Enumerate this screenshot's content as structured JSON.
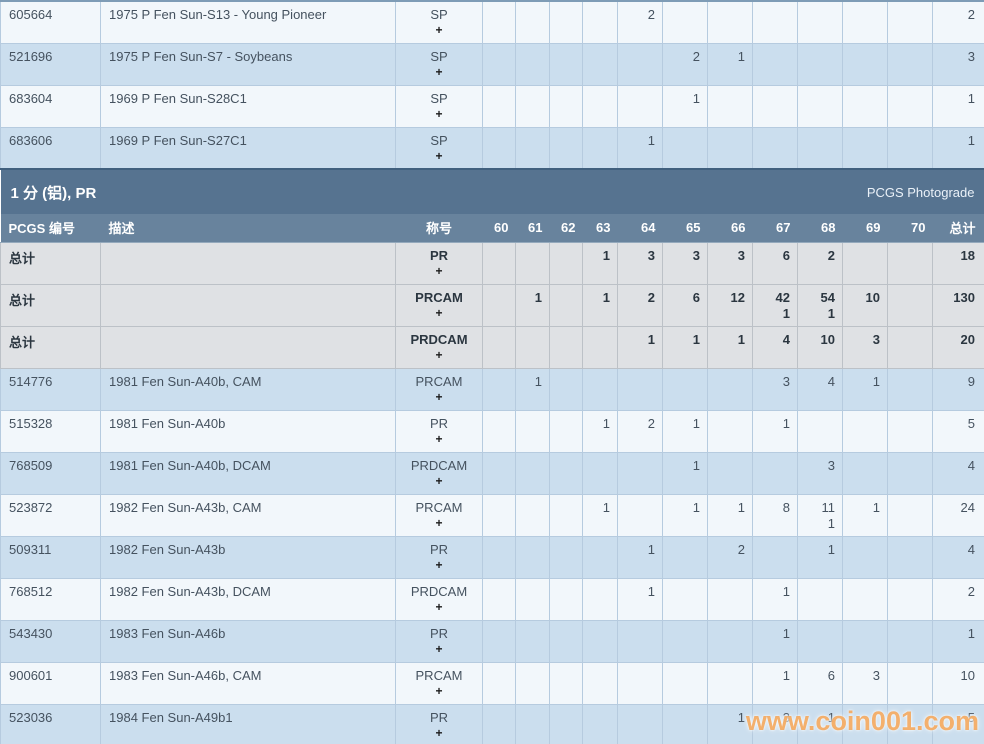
{
  "ui": {
    "plus": "+",
    "total_label": "总计",
    "watermark": "www.coin001.com"
  },
  "section": {
    "title": "1 分 (铝), PR",
    "link": "PCGS Photograde"
  },
  "columns": {
    "num": "PCGS 编号",
    "desc": "描述",
    "designation": "称号",
    "grades": [
      "60",
      "61",
      "62",
      "63",
      "64",
      "65",
      "66",
      "67",
      "68",
      "69",
      "70"
    ],
    "total": "总计"
  },
  "rows": [
    {
      "type": "coin",
      "shade": "light",
      "num": "605664",
      "desc": "1975 P Fen Sun-S13 - Young Pioneer",
      "desig": "SP",
      "values": [
        "",
        "",
        "",
        "",
        "2",
        "",
        "",
        "",
        "",
        "",
        ""
      ],
      "total": "2"
    },
    {
      "type": "coin",
      "shade": "blue",
      "num": "521696",
      "desc": "1975 P Fen Sun-S7 - Soybeans",
      "desig": "SP",
      "values": [
        "",
        "",
        "",
        "",
        "",
        "2",
        "1",
        "",
        "",
        "",
        ""
      ],
      "total": "3"
    },
    {
      "type": "coin",
      "shade": "light",
      "num": "683604",
      "desc": "1969 P Fen Sun-S28C1",
      "desig": "SP",
      "values": [
        "",
        "",
        "",
        "",
        "",
        "1",
        "",
        "",
        "",
        "",
        ""
      ],
      "total": "1"
    },
    {
      "type": "coin",
      "shade": "blue",
      "num": "683606",
      "desc": "1969 P Fen Sun-S27C1",
      "desig": "SP",
      "values": [
        "",
        "",
        "",
        "",
        "1",
        "",
        "",
        "",
        "",
        "",
        ""
      ],
      "total": "1"
    },
    {
      "type": "section"
    },
    {
      "type": "colhead"
    },
    {
      "type": "total",
      "desig": "PR",
      "values": [
        "",
        "",
        "",
        "1",
        "3",
        "3",
        "3",
        "6",
        "2",
        "",
        ""
      ],
      "total": "18"
    },
    {
      "type": "total",
      "desig": "PRCAM",
      "values": [
        "",
        "1",
        "",
        "1",
        "2",
        "6",
        "12",
        "42\n1",
        "54\n1",
        "10",
        ""
      ],
      "total": "130"
    },
    {
      "type": "total",
      "desig": "PRDCAM",
      "values": [
        "",
        "",
        "",
        "",
        "1",
        "1",
        "1",
        "4",
        "10",
        "3",
        ""
      ],
      "total": "20"
    },
    {
      "type": "coin",
      "shade": "blue",
      "num": "514776",
      "desc": "1981 Fen Sun-A40b, CAM",
      "desig": "PRCAM",
      "values": [
        "",
        "1",
        "",
        "",
        "",
        "",
        "",
        "3",
        "4",
        "1",
        ""
      ],
      "total": "9"
    },
    {
      "type": "coin",
      "shade": "light",
      "num": "515328",
      "desc": "1981 Fen Sun-A40b",
      "desig": "PR",
      "values": [
        "",
        "",
        "",
        "1",
        "2",
        "1",
        "",
        "1",
        "",
        "",
        ""
      ],
      "total": "5"
    },
    {
      "type": "coin",
      "shade": "blue",
      "num": "768509",
      "desc": "1981 Fen Sun-A40b, DCAM",
      "desig": "PRDCAM",
      "values": [
        "",
        "",
        "",
        "",
        "",
        "1",
        "",
        "",
        "3",
        "",
        ""
      ],
      "total": "4"
    },
    {
      "type": "coin",
      "shade": "light",
      "num": "523872",
      "desc": "1982 Fen Sun-A43b, CAM",
      "desig": "PRCAM",
      "values": [
        "",
        "",
        "",
        "1",
        "",
        "1",
        "1",
        "8",
        "11\n1",
        "1",
        ""
      ],
      "total": "24"
    },
    {
      "type": "coin",
      "shade": "blue",
      "num": "509311",
      "desc": "1982 Fen Sun-A43b",
      "desig": "PR",
      "values": [
        "",
        "",
        "",
        "",
        "1",
        "",
        "2",
        "",
        "1",
        "",
        ""
      ],
      "total": "4"
    },
    {
      "type": "coin",
      "shade": "light",
      "num": "768512",
      "desc": "1982 Fen Sun-A43b, DCAM",
      "desig": "PRDCAM",
      "values": [
        "",
        "",
        "",
        "",
        "1",
        "",
        "",
        "1",
        "",
        "",
        ""
      ],
      "total": "2"
    },
    {
      "type": "coin",
      "shade": "blue",
      "num": "543430",
      "desc": "1983 Fen Sun-A46b",
      "desig": "PR",
      "values": [
        "",
        "",
        "",
        "",
        "",
        "",
        "",
        "1",
        "",
        "",
        ""
      ],
      "total": "1"
    },
    {
      "type": "coin",
      "shade": "light",
      "num": "900601",
      "desc": "1983 Fen Sun-A46b, CAM",
      "desig": "PRCAM",
      "values": [
        "",
        "",
        "",
        "",
        "",
        "",
        "",
        "1",
        "6",
        "3",
        ""
      ],
      "total": "10"
    },
    {
      "type": "coin",
      "shade": "blue",
      "num": "523036",
      "desc": "1984 Fen Sun-A49b1",
      "desig": "PR",
      "values": [
        "",
        "",
        "",
        "",
        "",
        "",
        "1",
        "3",
        "1",
        "",
        ""
      ],
      "total": "5"
    }
  ]
}
